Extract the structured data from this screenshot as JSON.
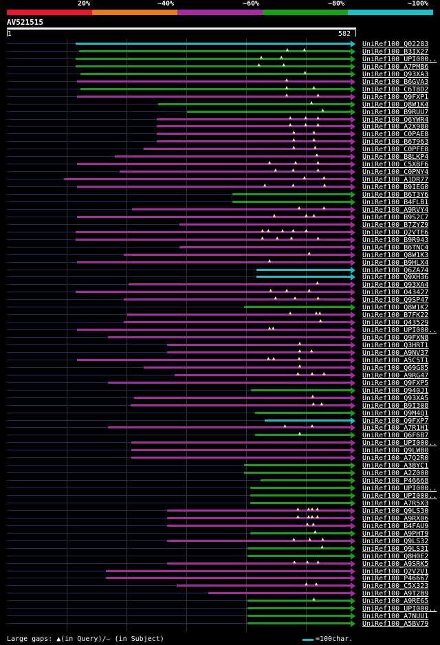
{
  "legend": {
    "labels": [
      "20%",
      "~40%",
      "~60%",
      "~80%",
      "~100%"
    ],
    "colors": [
      "#e8172c",
      "#e87a1e",
      "#a62aa2",
      "#18a018",
      "#18c0c8"
    ]
  },
  "query": {
    "id": "AV521515",
    "start": "1",
    "end": "582",
    "length": 582
  },
  "hits": [
    {
      "label": "UniRef100_Q02283",
      "start": 117,
      "color": "#18c0c8",
      "gaps": []
    },
    {
      "label": "UniRef100_B3IX27",
      "start": 123,
      "color": "#18a018",
      "gaps": [
        476,
        505
      ]
    },
    {
      "label": "UniRef100_UPI000..",
      "start": 117,
      "color": "#18a018",
      "gaps": [
        432,
        466
      ]
    },
    {
      "label": "UniRef100_A7PMB6",
      "start": 117,
      "color": "#18a018",
      "gaps": [
        428,
        470
      ]
    },
    {
      "label": "UniRef100_Q93XA3",
      "start": 125,
      "color": "#18a018",
      "gaps": [
        506
      ]
    },
    {
      "label": "UniRef100_B6GVA3",
      "start": 120,
      "color": "#a62aa2",
      "gaps": [
        475
      ]
    },
    {
      "label": "UniRef100_C6T8D2",
      "start": 125,
      "color": "#18a018",
      "gaps": [
        475,
        521
      ]
    },
    {
      "label": "UniRef100_Q9FXP1",
      "start": 120,
      "color": "#a62aa2",
      "gaps": [
        475,
        528
      ]
    },
    {
      "label": "UniRef100_Q8W1K4",
      "start": 257,
      "color": "#18a018",
      "gaps": [
        517
      ]
    },
    {
      "label": "UniRef100_B9RUU7",
      "start": 305,
      "color": "#18a018",
      "gaps": [
        536
      ]
    },
    {
      "label": "UniRef100_Q6YWR4",
      "start": 254,
      "color": "#a62aa2",
      "gaps": [
        481,
        507,
        528
      ]
    },
    {
      "label": "UniRef100_A2X980",
      "start": 254,
      "color": "#a62aa2",
      "gaps": [
        481,
        507,
        528
      ]
    },
    {
      "label": "UniRef100_C0PAE8",
      "start": 254,
      "color": "#a62aa2",
      "gaps": [
        487,
        521
      ]
    },
    {
      "label": "UniRef100_B6T963",
      "start": 254,
      "color": "#a62aa2",
      "gaps": [
        487,
        521
      ]
    },
    {
      "label": "UniRef100_C0PFE8",
      "start": 232,
      "color": "#a62aa2",
      "gaps": [
        487,
        523
      ]
    },
    {
      "label": "UniRef100_B8LKP4",
      "start": 183,
      "color": "#a62aa2",
      "gaps": [
        526
      ]
    },
    {
      "label": "UniRef100_C5XBF6",
      "start": 120,
      "color": "#a62aa2",
      "gaps": [
        446,
        490,
        528
      ]
    },
    {
      "label": "UniRef100_C0PNY4",
      "start": 192,
      "color": "#a62aa2",
      "gaps": [
        456,
        486,
        528
      ]
    },
    {
      "label": "UniRef100_A1DR77",
      "start": 98,
      "color": "#a62aa2",
      "gaps": [
        505,
        538
      ]
    },
    {
      "label": "UniRef100_B9IEG0",
      "start": 120,
      "color": "#a62aa2",
      "gaps": [
        438,
        486,
        539
      ]
    },
    {
      "label": "UniRef100_B6T3Y6",
      "start": 382,
      "color": "#18a018",
      "gaps": []
    },
    {
      "label": "UniRef100_B4FLB1",
      "start": 382,
      "color": "#18a018",
      "gaps": []
    },
    {
      "label": "UniRef100_A9RVY4",
      "start": 213,
      "color": "#a62aa2",
      "gaps": [
        496,
        538
      ]
    },
    {
      "label": "UniRef100_B9S2C7",
      "start": 120,
      "color": "#a62aa2",
      "gaps": [
        454,
        508,
        521
      ]
    },
    {
      "label": "UniRef100_B7ZYZ9",
      "start": 293,
      "color": "#a62aa2",
      "gaps": []
    },
    {
      "label": "UniRef100_Q2VTE6",
      "start": 117,
      "color": "#a62aa2",
      "gaps": [
        434,
        444,
        468,
        486,
        508
      ]
    },
    {
      "label": "UniRef100_B9R943",
      "start": 117,
      "color": "#a62aa2",
      "gaps": [
        434,
        459,
        483,
        528
      ]
    },
    {
      "label": "UniRef100_B6TNC4",
      "start": 293,
      "color": "#a62aa2",
      "gaps": []
    },
    {
      "label": "UniRef100_Q8W1K3",
      "start": 198,
      "color": "#a62aa2",
      "gaps": [
        513
      ]
    },
    {
      "label": "UniRef100_B9HLX4",
      "start": 120,
      "color": "#a62aa2",
      "gaps": [
        446
      ]
    },
    {
      "label": "UniRef100_Q6ZA74",
      "start": 423,
      "color": "#18c0c8",
      "gaps": []
    },
    {
      "label": "UniRef100_Q9XH36",
      "start": 423,
      "color": "#18c0c8",
      "gaps": []
    },
    {
      "label": "UniRef100_Q93XA4",
      "start": 207,
      "color": "#a62aa2",
      "gaps": [
        527
      ]
    },
    {
      "label": "UniRef100_O43427",
      "start": 117,
      "color": "#a62aa2",
      "gaps": [
        448,
        475,
        513
      ]
    },
    {
      "label": "UniRef100_Q9SP47",
      "start": 198,
      "color": "#a62aa2",
      "gaps": [
        456,
        489,
        528
      ]
    },
    {
      "label": "UniRef100_Q8W1K2",
      "start": 402,
      "color": "#18a018",
      "gaps": []
    },
    {
      "label": "UniRef100_B7FK22",
      "start": 204,
      "color": "#a62aa2",
      "gaps": [
        481,
        525,
        531
      ]
    },
    {
      "label": "UniRef100_Q43529",
      "start": 198,
      "color": "#a62aa2",
      "gaps": [
        532
      ]
    },
    {
      "label": "UniRef100_UPI000..",
      "start": 120,
      "color": "#a62aa2",
      "gaps": [
        446,
        452
      ]
    },
    {
      "label": "UniRef100_Q9FXN8",
      "start": 172,
      "color": "#a62aa2",
      "gaps": []
    },
    {
      "label": "UniRef100_Q3HRT1",
      "start": 272,
      "color": "#a62aa2",
      "gaps": [
        497
      ]
    },
    {
      "label": "UniRef100_A9NV37",
      "start": 272,
      "color": "#a62aa2",
      "gaps": [
        497,
        517
      ]
    },
    {
      "label": "UniRef100_A5C5T1",
      "start": 120,
      "color": "#a62aa2",
      "gaps": [
        444,
        453,
        496
      ]
    },
    {
      "label": "UniRef100_Q69G85",
      "start": 232,
      "color": "#a62aa2",
      "gaps": [
        497
      ]
    },
    {
      "label": "UniRef100_A9RG47",
      "start": 284,
      "color": "#a62aa2",
      "gaps": [
        494,
        518,
        538
      ]
    },
    {
      "label": "UniRef100_Q9FXP5",
      "start": 172,
      "color": "#a62aa2",
      "gaps": []
    },
    {
      "label": "UniRef100_Q940J1",
      "start": 414,
      "color": "#18a018",
      "gaps": []
    },
    {
      "label": "UniRef100_Q93XA5",
      "start": 216,
      "color": "#a62aa2",
      "gaps": [
        519
      ]
    },
    {
      "label": "UniRef100_B9I308",
      "start": 210,
      "color": "#a62aa2",
      "gaps": [
        520,
        534
      ]
    },
    {
      "label": "UniRef100_Q9M4Q1",
      "start": 421,
      "color": "#18a018",
      "gaps": []
    },
    {
      "label": "UniRef100_Q9FXP7",
      "start": 437,
      "color": "#18c0c8",
      "gaps": []
    },
    {
      "label": "UniRef100_A7R1H1",
      "start": 172,
      "color": "#a62aa2",
      "gaps": [
        472,
        518
      ]
    },
    {
      "label": "UniRef100_Q6F6B7",
      "start": 421,
      "color": "#18a018",
      "gaps": [
        497
      ]
    },
    {
      "label": "UniRef100_UPI000..",
      "start": 211,
      "color": "#a62aa2",
      "gaps": []
    },
    {
      "label": "UniRef100_Q9LWB0",
      "start": 211,
      "color": "#a62aa2",
      "gaps": []
    },
    {
      "label": "UniRef100_A7Q2R0",
      "start": 211,
      "color": "#a62aa2",
      "gaps": []
    },
    {
      "label": "UniRef100_A3BYC1",
      "start": 402,
      "color": "#18a018",
      "gaps": []
    },
    {
      "label": "UniRef100_A2Z000",
      "start": 402,
      "color": "#18a018",
      "gaps": []
    },
    {
      "label": "UniRef100_P46668",
      "start": 430,
      "color": "#18a018",
      "gaps": []
    },
    {
      "label": "UniRef100_UPI000..",
      "start": 412,
      "color": "#18a018",
      "gaps": []
    },
    {
      "label": "UniRef100_UPI000..",
      "start": 412,
      "color": "#18a018",
      "gaps": []
    },
    {
      "label": "UniRef100_A7R5X3",
      "start": 412,
      "color": "#18a018",
      "gaps": []
    },
    {
      "label": "UniRef100_Q9LS30",
      "start": 272,
      "color": "#a62aa2",
      "gaps": [
        494,
        512,
        518,
        527
      ]
    },
    {
      "label": "UniRef100_A9RX06",
      "start": 272,
      "color": "#a62aa2",
      "gaps": [
        494,
        512,
        518,
        527
      ]
    },
    {
      "label": "UniRef100_B4FAU9",
      "start": 272,
      "color": "#a62aa2",
      "gaps": [
        510,
        520
      ]
    },
    {
      "label": "UniRef100_A9PHT9",
      "start": 412,
      "color": "#18a018",
      "gaps": [
        523
      ]
    },
    {
      "label": "UniRef100_Q9LS32",
      "start": 272,
      "color": "#a62aa2",
      "gaps": [
        487,
        514,
        536
      ]
    },
    {
      "label": "UniRef100_Q9LS31",
      "start": 408,
      "color": "#18a018",
      "gaps": [
        535
      ]
    },
    {
      "label": "UniRef100_Q8H0E2",
      "start": 408,
      "color": "#18a018",
      "gaps": []
    },
    {
      "label": "UniRef100_A9SRK5",
      "start": 272,
      "color": "#a62aa2",
      "gaps": [
        488,
        510,
        528
      ]
    },
    {
      "label": "UniRef100_Q2V2V1",
      "start": 168,
      "color": "#a62aa2",
      "gaps": []
    },
    {
      "label": "UniRef100_P46667",
      "start": 168,
      "color": "#a62aa2",
      "gaps": []
    },
    {
      "label": "UniRef100_C5X323",
      "start": 288,
      "color": "#a62aa2",
      "gaps": [
        508,
        525
      ]
    },
    {
      "label": "UniRef100_A9T2B9",
      "start": 341,
      "color": "#a62aa2",
      "gaps": []
    },
    {
      "label": "UniRef100_A9RE65",
      "start": 408,
      "color": "#18a018",
      "gaps": [
        521
      ]
    },
    {
      "label": "UniRef100_UPI000..",
      "start": 408,
      "color": "#18a018",
      "gaps": []
    },
    {
      "label": "UniRef100_A7NUU1",
      "start": 408,
      "color": "#18a018",
      "gaps": []
    },
    {
      "label": "UniRef100_A5BV79",
      "start": 408,
      "color": "#18a018",
      "gaps": []
    }
  ],
  "footer": {
    "gaps_text": "Large gaps: ▲(in Query)/– (in Subject)",
    "scale_text": "=100char."
  }
}
